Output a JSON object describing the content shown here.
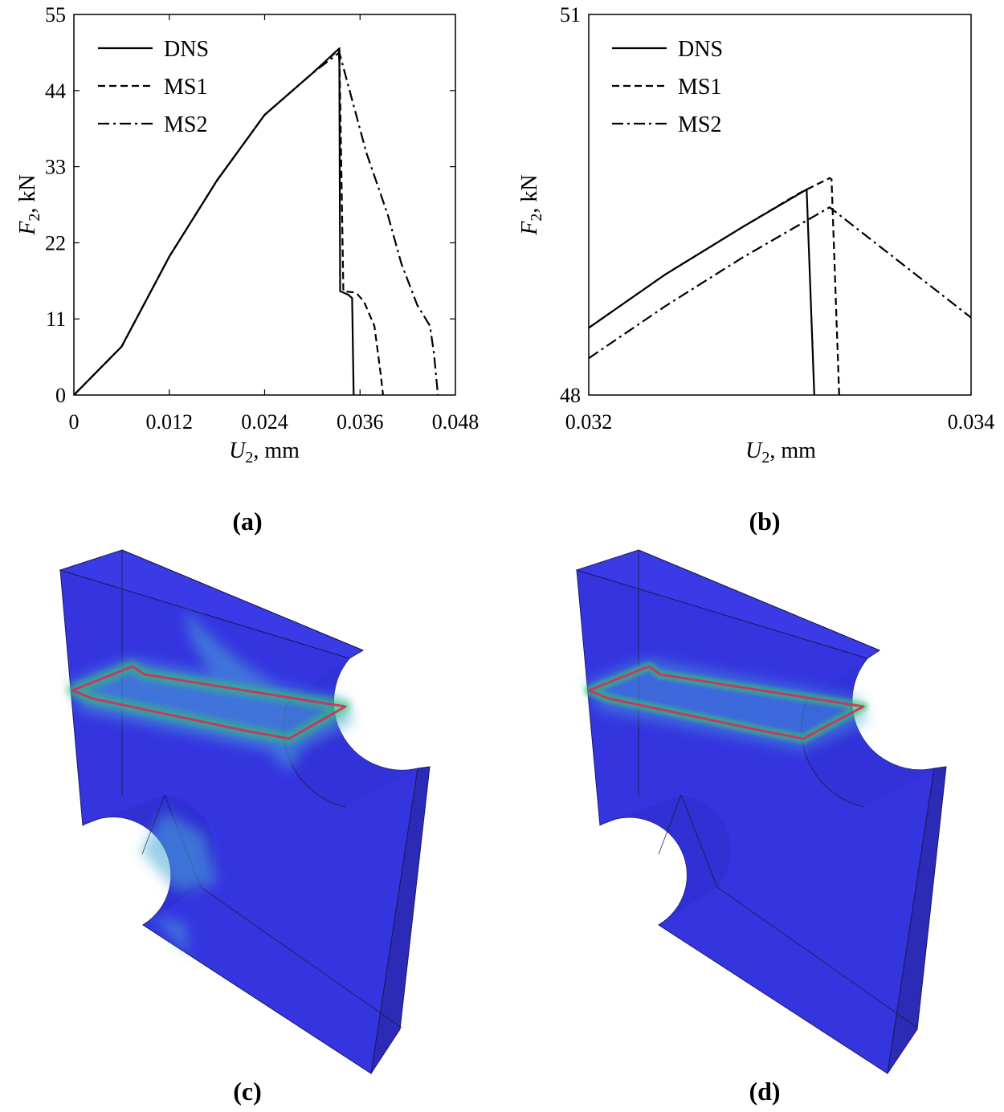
{
  "chart_data": [
    {
      "type": "line",
      "panel_label": "(a)",
      "xlabel": "U2, mm",
      "ylabel": "F2, kN",
      "xlim": [
        0,
        0.048
      ],
      "ylim": [
        0,
        55
      ],
      "x_ticks": [
        "0",
        "0.012",
        "0.024",
        "0.036",
        "0.048"
      ],
      "y_ticks": [
        "0",
        "11",
        "22",
        "33",
        "44",
        "55"
      ],
      "legend_position": "top-left",
      "series": [
        {
          "name": "DNS",
          "style": "solid",
          "points": [
            [
              0,
              0
            ],
            [
              0.006,
              7
            ],
            [
              0.012,
              20
            ],
            [
              0.018,
              31
            ],
            [
              0.024,
              40.5
            ],
            [
              0.03,
              46.5
            ],
            [
              0.0333,
              50
            ],
            [
              0.0334,
              48
            ],
            [
              0.0335,
              15
            ],
            [
              0.0345,
              14.5
            ],
            [
              0.035,
              14
            ],
            [
              0.0352,
              0
            ]
          ]
        },
        {
          "name": "MS1",
          "style": "dashed",
          "points": [
            [
              0,
              0
            ],
            [
              0.006,
              7
            ],
            [
              0.012,
              20
            ],
            [
              0.018,
              31
            ],
            [
              0.024,
              40.5
            ],
            [
              0.03,
              46.5
            ],
            [
              0.0334,
              50
            ],
            [
              0.0339,
              15
            ],
            [
              0.0355,
              14.8
            ],
            [
              0.0365,
              13.5
            ],
            [
              0.0378,
              10
            ],
            [
              0.0386,
              3
            ],
            [
              0.0389,
              0
            ]
          ]
        },
        {
          "name": "MS2",
          "style": "dash-dot",
          "points": [
            [
              0,
              0
            ],
            [
              0.006,
              7
            ],
            [
              0.012,
              20
            ],
            [
              0.018,
              31
            ],
            [
              0.024,
              40.5
            ],
            [
              0.03,
              46.5
            ],
            [
              0.0334,
              49.5
            ],
            [
              0.0368,
              35
            ],
            [
              0.0395,
              26
            ],
            [
              0.0412,
              19
            ],
            [
              0.0432,
              13
            ],
            [
              0.0448,
              10
            ],
            [
              0.0453,
              6
            ],
            [
              0.0458,
              0
            ]
          ]
        }
      ]
    },
    {
      "type": "line",
      "panel_label": "(b)",
      "xlabel": "U2, mm",
      "ylabel": "F2, kN",
      "xlim": [
        0.032,
        0.034
      ],
      "ylim": [
        48,
        51
      ],
      "x_ticks": [
        "0.032",
        "0.034"
      ],
      "y_ticks": [
        "48",
        "51"
      ],
      "legend_position": "top-left",
      "series": [
        {
          "name": "DNS",
          "style": "solid",
          "points": [
            [
              0.032,
              48.53
            ],
            [
              0.0324,
              48.95
            ],
            [
              0.0328,
              49.32
            ],
            [
              0.03314,
              49.62
            ],
            [
              0.03318,
              48
            ]
          ]
        },
        {
          "name": "MS1",
          "style": "dashed",
          "points": [
            [
              0.032,
              48.53
            ],
            [
              0.0324,
              48.95
            ],
            [
              0.0328,
              49.32
            ],
            [
              0.0331,
              49.59
            ],
            [
              0.03318,
              49.65
            ],
            [
              0.03326,
              49.71
            ],
            [
              0.03327,
              49.7
            ],
            [
              0.03331,
              48
            ]
          ]
        },
        {
          "name": "MS2",
          "style": "dash-dot",
          "points": [
            [
              0.032,
              48.29
            ],
            [
              0.0324,
              48.7
            ],
            [
              0.0328,
              49.08
            ],
            [
              0.03326,
              49.48
            ],
            [
              0.034,
              48.61
            ]
          ]
        }
      ]
    }
  ],
  "panels": {
    "c_label": "(c)",
    "d_label": "(d)"
  },
  "colors": {
    "body": "#3535e0",
    "side": "#2b2bb8",
    "hot": "#d03060",
    "warm": "#30d060",
    "halo": "#4aa8d8"
  }
}
